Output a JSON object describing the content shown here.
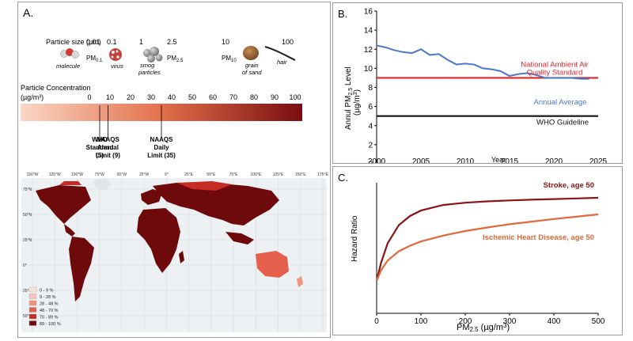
{
  "panel_a": {
    "label": "A.",
    "size_title": "Particle size (µm)",
    "size_ticks": [
      "0.01",
      "0.1",
      "1",
      "2.5",
      "10",
      "100"
    ],
    "pm_labels": [
      "0.1",
      "2.5",
      "10"
    ],
    "particles": [
      "molecule",
      "virus",
      "smog\nparticles",
      "grain\nof sand",
      "hair"
    ],
    "conc_title": "Particle  Concentration",
    "conc_unit": "(µg/m³)",
    "conc_ticks": [
      "0",
      "10",
      "20",
      "30",
      "40",
      "50",
      "60",
      "70",
      "80",
      "90",
      "100"
    ],
    "markers": [
      {
        "label": "WHO\nStandard\n(5)",
        "value": 5
      },
      {
        "label": "NAAQS\nAnnual\nLimit (9)",
        "value": 9
      },
      {
        "label": "NAAQS\nDaily\nLimit (35)",
        "value": 35
      }
    ],
    "map": {
      "lon_ticks": [
        "150°W",
        "125°W",
        "100°W",
        "75°W",
        "50°W",
        "25°W",
        "0°",
        "25°E",
        "50°E",
        "75°E",
        "100°E",
        "125°E",
        "150°E",
        "175°E"
      ],
      "lat_ticks": [
        "75°N",
        "50°N",
        "25°N",
        "0°",
        "25°S",
        "50°S"
      ],
      "legend": [
        {
          "label": "0 - 9 %",
          "color": "#fbe3dc"
        },
        {
          "label": "9 - 28 %",
          "color": "#f7c3b2"
        },
        {
          "label": "28 - 48 %",
          "color": "#f1947c"
        },
        {
          "label": "48 - 70 %",
          "color": "#e4604c"
        },
        {
          "label": "70 - 89 %",
          "color": "#c62b25"
        },
        {
          "label": "89 - 100 %",
          "color": "#6e0a0c"
        }
      ]
    }
  },
  "colors": {
    "scale_low": "#fbd6c6",
    "scale_mid": "#e2704a",
    "scale_high": "#7a0d10",
    "annual": "#4a78c8",
    "naaqs": "#e0262a",
    "who": "#111111",
    "stroke": "#8b1414",
    "ihd": "#e0683a"
  },
  "chart_data": [
    {
      "type": "line",
      "panel": "B.",
      "x": [
        2000,
        2001,
        2002,
        2003,
        2004,
        2005,
        2006,
        2007,
        2008,
        2009,
        2010,
        2011,
        2012,
        2013,
        2014,
        2015,
        2016,
        2017,
        2018,
        2019,
        2020,
        2021,
        2022,
        2023,
        2024
      ],
      "series": [
        {
          "name": "Annual Average",
          "values": [
            12.4,
            12.2,
            11.9,
            11.7,
            11.6,
            12.0,
            11.4,
            11.5,
            10.9,
            10.4,
            10.5,
            10.4,
            10.0,
            9.9,
            9.7,
            9.2,
            9.4,
            9.5,
            9.3,
            9.0,
            9.0,
            9.0,
            9.0,
            8.9,
            8.9
          ]
        }
      ],
      "hlines": [
        {
          "name": "National Ambient Air Quality Standard",
          "value": 9
        },
        {
          "name": "WHO Guideline",
          "value": 5
        }
      ],
      "xlabel": "Year",
      "ylabel": "Annul PM2.5 Level (µg/m³)",
      "xlim": [
        2000,
        2025
      ],
      "ylim": [
        0,
        16
      ],
      "xticks": [
        2000,
        2005,
        2010,
        2015,
        2020,
        2025
      ],
      "yticks": [
        0,
        2,
        4,
        6,
        8,
        10,
        12,
        14,
        16
      ],
      "legend": [
        "National Ambient Air\nQuality Standard",
        "Annual Average",
        "WHO Guideline"
      ]
    },
    {
      "type": "line",
      "panel": "C.",
      "x": [
        0,
        10,
        25,
        50,
        75,
        100,
        150,
        200,
        250,
        300,
        350,
        400,
        450,
        500
      ],
      "series": [
        {
          "name": "Stroke, age 50",
          "values": [
            1.0,
            1.55,
            2.15,
            2.7,
            2.98,
            3.15,
            3.32,
            3.39,
            3.43,
            3.46,
            3.48,
            3.5,
            3.52,
            3.54
          ]
        },
        {
          "name": "Ischemic Heart Disease, age 50",
          "values": [
            1.0,
            1.32,
            1.62,
            1.9,
            2.07,
            2.2,
            2.38,
            2.52,
            2.63,
            2.73,
            2.81,
            2.89,
            2.96,
            3.03
          ]
        }
      ],
      "xlabel": "PM2.5 (µg/m³)",
      "ylabel": "Hazard Ratio",
      "xlim": [
        0,
        500
      ],
      "ylim": [
        0,
        4
      ],
      "xticks": [
        0,
        100,
        200,
        300,
        400,
        500
      ]
    }
  ]
}
